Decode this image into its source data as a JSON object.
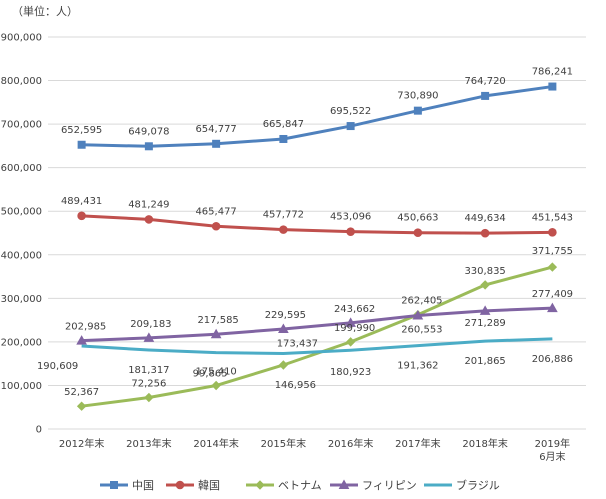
{
  "chart_data": {
    "type": "line",
    "unit_label": "（単位：人）",
    "categories": [
      [
        "2012年末"
      ],
      [
        "2013年末"
      ],
      [
        "2014年末"
      ],
      [
        "2015年末"
      ],
      [
        "2016年末"
      ],
      [
        "2017年末"
      ],
      [
        "2018年末"
      ],
      [
        "2019年",
        "6月末"
      ]
    ],
    "ylim": [
      0,
      900000
    ],
    "yticks": [
      0,
      100000,
      200000,
      300000,
      400000,
      500000,
      600000,
      700000,
      800000,
      900000
    ],
    "ytick_labels": [
      "0",
      "100,000",
      "200,000",
      "300,000",
      "400,000",
      "500,000",
      "600,000",
      "700,000",
      "800,000",
      "900,000"
    ],
    "grid": true,
    "legend_position": "bottom",
    "series": [
      {
        "name": "中国",
        "color": "#4f81bd",
        "marker": "square",
        "values": [
          652595,
          649078,
          654777,
          665847,
          695522,
          730890,
          764720,
          786241
        ],
        "labels": [
          "652,595",
          "649,078",
          "654,777",
          "665,847",
          "695,522",
          "730,890",
          "764,720",
          "786,241"
        ]
      },
      {
        "name": "韓国",
        "color": "#c0504d",
        "marker": "circle",
        "values": [
          489431,
          481249,
          465477,
          457772,
          453096,
          450663,
          449634,
          451543
        ],
        "labels": [
          "489,431",
          "481,249",
          "465,477",
          "457,772",
          "453,096",
          "450,663",
          "449,634",
          "451,543"
        ]
      },
      {
        "name": "ベトナム",
        "color": "#9bbb59",
        "marker": "diamond",
        "values": [
          52367,
          72256,
          99865,
          146956,
          199990,
          262405,
          330835,
          371755
        ],
        "labels": [
          "52,367",
          "72,256",
          "99,865",
          "146,956",
          "199,990",
          "262,405",
          "330,835",
          "371,755"
        ]
      },
      {
        "name": "フィリピン",
        "color": "#8064a2",
        "marker": "triangle",
        "values": [
          202985,
          209183,
          217585,
          229595,
          243662,
          260553,
          271289,
          277409
        ],
        "labels": [
          "202,985",
          "209,183",
          "217,585",
          "229,595",
          "243,662",
          "260,553",
          "271,289",
          "277,409"
        ]
      },
      {
        "name": "ブラジル",
        "color": "#4bacc6",
        "marker": "none",
        "values": [
          190609,
          181317,
          175410,
          173437,
          180923,
          191362,
          201865,
          206886
        ],
        "labels": [
          "190,609",
          "181,317",
          "175,410",
          "173,437",
          "180,923",
          "191,362",
          "201,865",
          "206,886"
        ]
      }
    ]
  }
}
